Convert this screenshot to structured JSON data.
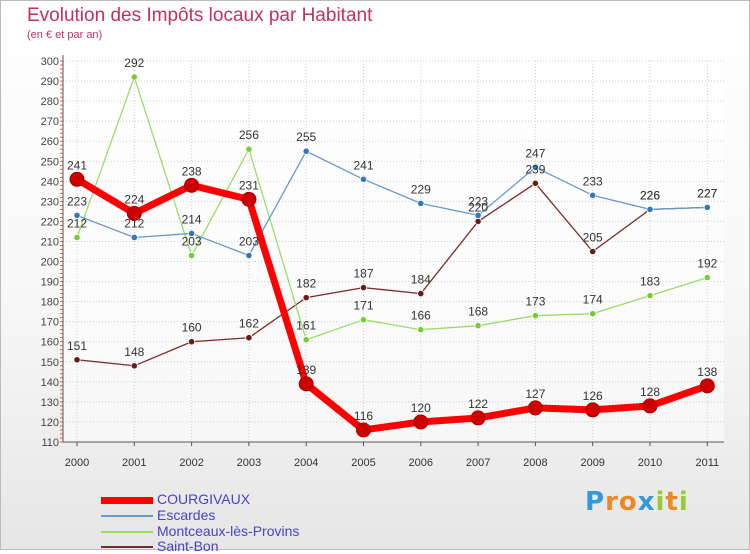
{
  "chart_data": {
    "type": "line",
    "title": "Evolution des Impôts locaux par Habitant",
    "subtitle": "(en € et par an)",
    "categories": [
      "2000",
      "2001",
      "2002",
      "2003",
      "2004",
      "2005",
      "2006",
      "2007",
      "2008",
      "2009",
      "2010",
      "2011"
    ],
    "ylim": [
      110,
      300
    ],
    "yticks": [
      110,
      120,
      130,
      140,
      150,
      160,
      170,
      180,
      190,
      200,
      210,
      220,
      230,
      240,
      250,
      260,
      270,
      280,
      290,
      300
    ],
    "grid": true,
    "legend_position": "bottom-left",
    "series": [
      {
        "name": "COURGIVAUX",
        "color": "#ff0000",
        "marker": "#cc0000",
        "values": [
          241,
          224,
          238,
          231,
          139,
          116,
          120,
          122,
          127,
          126,
          128,
          138
        ]
      },
      {
        "name": "Escardes",
        "color": "#6699cc",
        "marker": "#3377bb",
        "values": [
          223,
          212,
          214,
          203,
          255,
          241,
          229,
          223,
          247,
          233,
          226,
          227
        ]
      },
      {
        "name": "Montceaux-lès-Provins",
        "color": "#99dd66",
        "marker": "#77cc33",
        "values": [
          212,
          292,
          203,
          256,
          161,
          171,
          166,
          168,
          173,
          174,
          183,
          192
        ]
      },
      {
        "name": "Saint-Bon",
        "color": "#7a2a2a",
        "marker": "#6a1a1a",
        "values": [
          151,
          148,
          160,
          162,
          182,
          187,
          184,
          220,
          239,
          205,
          226,
          227
        ]
      }
    ]
  },
  "logo": {
    "letters": [
      "P",
      "r",
      "o",
      "x",
      "i",
      "t",
      "i"
    ],
    "colors": [
      "#3399dd",
      "#ee8822",
      "#ee8822",
      "#3399dd",
      "#99cc33",
      "#ee8822",
      "#99cc33"
    ]
  }
}
